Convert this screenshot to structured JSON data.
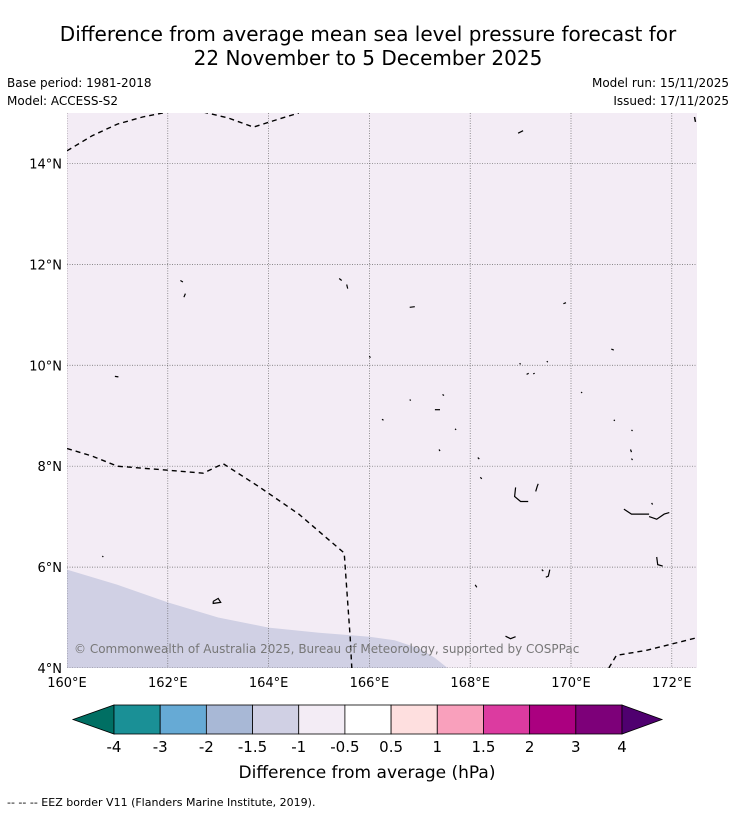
{
  "title": {
    "line1": "Difference from average mean sea level pressure forecast for",
    "line2": "22 November to 5 December 2025"
  },
  "meta": {
    "base_period": "Base period: 1981-2018",
    "model": "Model: ACCESS-S2",
    "model_run": "Model run: 15/11/2025",
    "issued": "Issued: 17/11/2025"
  },
  "map": {
    "lon_range": [
      160,
      172.5
    ],
    "lat_range": [
      4,
      15
    ],
    "lon_ticks": [
      {
        "value": 160,
        "label": "160°E"
      },
      {
        "value": 162,
        "label": "162°E"
      },
      {
        "value": 164,
        "label": "164°E"
      },
      {
        "value": 166,
        "label": "166°E"
      },
      {
        "value": 168,
        "label": "168°E"
      },
      {
        "value": 170,
        "label": "170°E"
      },
      {
        "value": 172,
        "label": "172°E"
      }
    ],
    "lat_ticks": [
      {
        "value": 4,
        "label": "4°N"
      },
      {
        "value": 6,
        "label": "6°N"
      },
      {
        "value": 8,
        "label": "8°N"
      },
      {
        "value": 10,
        "label": "10°N"
      },
      {
        "value": 12,
        "label": "12°N"
      },
      {
        "value": 14,
        "label": "14°N"
      }
    ],
    "background_colour": "#f3ecf5",
    "anomaly_region_colour": "#d0d0e4",
    "anomaly_region": [
      [
        160.0,
        5.95
      ],
      [
        161.0,
        5.65
      ],
      [
        162.0,
        5.3
      ],
      [
        163.0,
        5.0
      ],
      [
        164.0,
        4.8
      ],
      [
        165.0,
        4.7
      ],
      [
        166.0,
        4.62
      ],
      [
        166.5,
        4.55
      ],
      [
        167.0,
        4.38
      ],
      [
        167.3,
        4.2
      ],
      [
        167.55,
        4.0
      ],
      [
        160.0,
        4.0
      ]
    ],
    "copyright": "© Commonwealth of Australia 2025, Bureau of Meteorology, supported by COSPPac",
    "eez_lines": [
      [
        [
          160.0,
          14.25
        ],
        [
          160.5,
          14.55
        ],
        [
          161.0,
          14.78
        ],
        [
          161.5,
          14.92
        ],
        [
          162.0,
          15.02
        ]
      ],
      [
        [
          162.7,
          15.02
        ],
        [
          163.2,
          14.9
        ],
        [
          163.7,
          14.72
        ],
        [
          164.2,
          14.88
        ],
        [
          164.6,
          15.0
        ]
      ],
      [
        [
          172.45,
          14.92
        ],
        [
          172.47,
          14.82
        ]
      ],
      [
        [
          160.0,
          8.35
        ],
        [
          160.5,
          8.2
        ],
        [
          161.0,
          8.0
        ],
        [
          162.0,
          7.92
        ],
        [
          162.7,
          7.86
        ],
        [
          163.1,
          8.05
        ],
        [
          163.8,
          7.6
        ],
        [
          164.6,
          7.05
        ],
        [
          165.5,
          6.28
        ],
        [
          165.62,
          4.6
        ],
        [
          165.65,
          4.0
        ]
      ],
      [
        [
          170.75,
          4.0
        ],
        [
          170.9,
          4.25
        ],
        [
          171.5,
          4.35
        ],
        [
          172.5,
          4.6
        ]
      ]
    ],
    "island_outlines": [
      [
        [
          168.95,
          14.6
        ],
        [
          169.05,
          14.65
        ]
      ],
      [
        [
          162.25,
          11.68
        ],
        [
          162.3,
          11.65
        ]
      ],
      [
        [
          162.35,
          11.42
        ],
        [
          162.32,
          11.35
        ]
      ],
      [
        [
          165.4,
          11.72
        ],
        [
          165.45,
          11.68
        ]
      ],
      [
        [
          165.55,
          11.6
        ],
        [
          165.57,
          11.52
        ]
      ],
      [
        [
          166.8,
          11.15
        ],
        [
          166.9,
          11.16
        ]
      ],
      [
        [
          169.85,
          11.22
        ],
        [
          169.9,
          11.24
        ]
      ],
      [
        [
          166.0,
          10.18
        ],
        [
          166.02,
          10.15
        ]
      ],
      [
        [
          170.8,
          10.32
        ],
        [
          170.85,
          10.3
        ]
      ],
      [
        [
          168.98,
          10.04
        ],
        [
          169.0,
          10.02
        ]
      ],
      [
        [
          169.52,
          10.08
        ],
        [
          169.54,
          10.06
        ]
      ],
      [
        [
          169.12,
          9.82
        ],
        [
          169.16,
          9.84
        ]
      ],
      [
        [
          169.25,
          9.83
        ],
        [
          169.28,
          9.84
        ]
      ],
      [
        [
          160.95,
          9.78
        ],
        [
          161.02,
          9.77
        ]
      ],
      [
        [
          170.2,
          9.47
        ],
        [
          170.22,
          9.45
        ]
      ],
      [
        [
          166.8,
          9.32
        ],
        [
          166.82,
          9.3
        ]
      ],
      [
        [
          167.45,
          9.42
        ],
        [
          167.48,
          9.4
        ]
      ],
      [
        [
          167.3,
          9.12
        ],
        [
          167.4,
          9.12
        ]
      ],
      [
        [
          166.25,
          8.93
        ],
        [
          166.28,
          8.91
        ]
      ],
      [
        [
          170.85,
          8.92
        ],
        [
          170.87,
          8.9
        ]
      ],
      [
        [
          171.2,
          8.72
        ],
        [
          171.22,
          8.7
        ]
      ],
      [
        [
          167.7,
          8.74
        ],
        [
          167.72,
          8.72
        ]
      ],
      [
        [
          167.38,
          8.33
        ],
        [
          167.4,
          8.3
        ]
      ],
      [
        [
          171.18,
          8.33
        ],
        [
          171.2,
          8.28
        ]
      ],
      [
        [
          171.2,
          8.15
        ],
        [
          171.22,
          8.12
        ]
      ],
      [
        [
          168.15,
          8.17
        ],
        [
          168.18,
          8.14
        ]
      ],
      [
        [
          168.2,
          7.78
        ],
        [
          168.23,
          7.75
        ]
      ],
      [
        [
          168.9,
          7.58
        ],
        [
          168.88,
          7.4
        ],
        [
          169.0,
          7.3
        ],
        [
          169.15,
          7.3
        ]
      ],
      [
        [
          169.3,
          7.5
        ],
        [
          169.33,
          7.6
        ],
        [
          169.35,
          7.65
        ]
      ],
      [
        [
          171.05,
          7.15
        ],
        [
          171.2,
          7.05
        ],
        [
          171.4,
          7.05
        ],
        [
          171.55,
          7.05
        ]
      ],
      [
        [
          171.6,
          7.27
        ],
        [
          171.62,
          7.24
        ]
      ],
      [
        [
          171.55,
          7.0
        ],
        [
          171.7,
          6.95
        ],
        [
          171.85,
          7.05
        ],
        [
          171.95,
          7.08
        ]
      ],
      [
        [
          160.7,
          6.22
        ],
        [
          160.72,
          6.2
        ]
      ],
      [
        [
          171.7,
          6.2
        ],
        [
          171.72,
          6.05
        ],
        [
          171.82,
          6.02
        ]
      ],
      [
        [
          169.42,
          5.95
        ],
        [
          169.45,
          5.92
        ]
      ],
      [
        [
          169.58,
          5.95
        ],
        [
          169.55,
          5.82
        ],
        [
          169.5,
          5.8
        ]
      ],
      [
        [
          168.1,
          5.65
        ],
        [
          168.13,
          5.6
        ]
      ],
      [
        [
          162.9,
          5.32
        ],
        [
          163.0,
          5.38
        ],
        [
          163.05,
          5.3
        ],
        [
          162.9,
          5.28
        ],
        [
          162.9,
          5.32
        ]
      ],
      [
        [
          168.7,
          4.63
        ],
        [
          168.8,
          4.58
        ],
        [
          168.9,
          4.62
        ]
      ]
    ]
  },
  "colorbar": {
    "label": "Difference from average (hPa)",
    "bins": [
      {
        "colour": "#006f63"
      },
      {
        "colour": "#1a9096"
      },
      {
        "colour": "#66aad5"
      },
      {
        "colour": "#a8b8d6"
      },
      {
        "colour": "#d0d0e4"
      },
      {
        "colour": "#f3ecf5"
      },
      {
        "colour": "#ffffff"
      },
      {
        "colour": "#fedfdf"
      },
      {
        "colour": "#f9a0bc"
      },
      {
        "colour": "#dc3ba0"
      },
      {
        "colour": "#ab0080"
      },
      {
        "colour": "#7d0079"
      },
      {
        "colour": "#4f006f"
      }
    ],
    "ticks": [
      "-4",
      "-3",
      "-2",
      "-1.5",
      "-1",
      "-0.5",
      "0.5",
      "1",
      "1.5",
      "2",
      "3",
      "4"
    ]
  },
  "footnote": "--  --  -- EEZ border V11 (Flanders Marine Institute, 2019)."
}
